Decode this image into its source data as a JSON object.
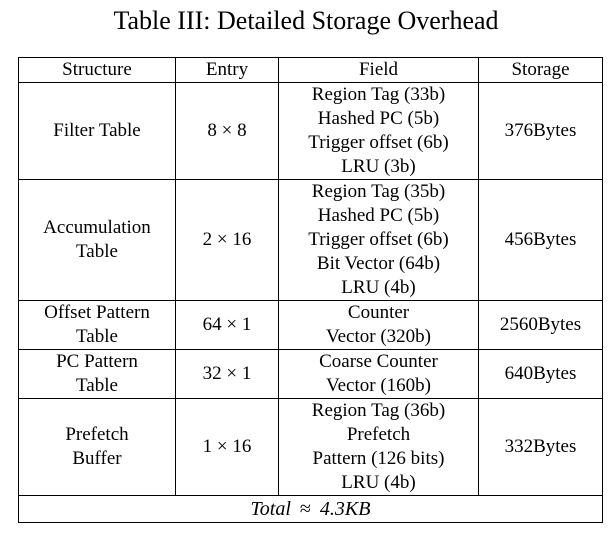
{
  "caption": "Table III: Detailed Storage Overhead",
  "headers": {
    "structure": "Structure",
    "entry": "Entry",
    "field": "Field",
    "storage": "Storage"
  },
  "rows": [
    {
      "structure": [
        "Filter Table"
      ],
      "entry": "8 × 8",
      "fields": [
        "Region Tag (33b)",
        "Hashed PC (5b)",
        "Trigger offset (6b)",
        "LRU (3b)"
      ],
      "storage": "376Bytes"
    },
    {
      "structure": [
        "Accumulation",
        "Table"
      ],
      "entry": "2 × 16",
      "fields": [
        "Region Tag (35b)",
        "Hashed PC (5b)",
        "Trigger offset (6b)",
        "Bit Vector (64b)",
        "LRU (4b)"
      ],
      "storage": "456Bytes"
    },
    {
      "structure": [
        "Offset Pattern",
        "Table"
      ],
      "entry": "64 × 1",
      "fields": [
        "Counter",
        "Vector (320b)"
      ],
      "storage": "2560Bytes"
    },
    {
      "structure": [
        "PC Pattern",
        "Table"
      ],
      "entry": "32 × 1",
      "fields": [
        "Coarse Counter",
        "Vector (160b)"
      ],
      "storage": "640Bytes"
    },
    {
      "structure": [
        "Prefetch",
        "Buffer"
      ],
      "entry": "1 × 16",
      "fields": [
        "Region Tag (36b)",
        "Prefetch",
        "Pattern (126 bits)",
        "LRU (4b)"
      ],
      "storage": "332Bytes"
    }
  ],
  "total": {
    "label": "Total",
    "symbol": "≈",
    "value": "4.3KB"
  }
}
